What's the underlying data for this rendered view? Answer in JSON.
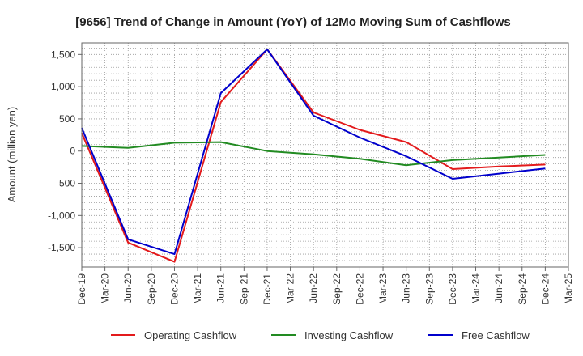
{
  "chart_data": {
    "type": "line",
    "title": "[9656]  Trend of Change in Amount (YoY) of 12Mo Moving Sum of Cashflows",
    "xlabel": "",
    "ylabel": "Amount (million yen)",
    "ylim": [
      -1800,
      1680
    ],
    "yticks": [
      1500,
      1000,
      500,
      0,
      -500,
      -1000,
      -1500
    ],
    "ytick_labels": [
      "1,500",
      "1,000",
      "500",
      "0",
      "-500",
      "-1,000",
      "-1,500"
    ],
    "categories": [
      "Dec-19",
      "Mar-20",
      "Jun-20",
      "Sep-20",
      "Dec-20",
      "Mar-21",
      "Jun-21",
      "Sep-21",
      "Dec-21",
      "Mar-22",
      "Jun-22",
      "Sep-22",
      "Dec-22",
      "Mar-23",
      "Jun-23",
      "Sep-23",
      "Dec-23",
      "Mar-24",
      "Jun-24",
      "Sep-24",
      "Dec-24",
      "Mar-25"
    ],
    "grid": true,
    "legend_position": "bottom",
    "series": [
      {
        "name": "Operating Cashflow",
        "color": "#e31a1c",
        "points": [
          {
            "x": "Dec-19",
            "y": 280
          },
          {
            "x": "Jun-20",
            "y": -1420
          },
          {
            "x": "Dec-20",
            "y": -1720
          },
          {
            "x": "Jun-21",
            "y": 760
          },
          {
            "x": "Dec-21",
            "y": 1580
          },
          {
            "x": "Jun-22",
            "y": 600
          },
          {
            "x": "Dec-22",
            "y": 330
          },
          {
            "x": "Jun-23",
            "y": 140
          },
          {
            "x": "Dec-23",
            "y": -280
          },
          {
            "x": "Jun-24",
            "y": -240
          },
          {
            "x": "Dec-24",
            "y": -210
          }
        ]
      },
      {
        "name": "Investing Cashflow",
        "color": "#228b22",
        "points": [
          {
            "x": "Dec-19",
            "y": 80
          },
          {
            "x": "Jun-20",
            "y": 50
          },
          {
            "x": "Dec-20",
            "y": 130
          },
          {
            "x": "Jun-21",
            "y": 140
          },
          {
            "x": "Dec-21",
            "y": 0
          },
          {
            "x": "Jun-22",
            "y": -50
          },
          {
            "x": "Dec-22",
            "y": -120
          },
          {
            "x": "Jun-23",
            "y": -220
          },
          {
            "x": "Dec-23",
            "y": -140
          },
          {
            "x": "Jun-24",
            "y": -100
          },
          {
            "x": "Dec-24",
            "y": -60
          }
        ]
      },
      {
        "name": "Free Cashflow",
        "color": "#0000cc",
        "points": [
          {
            "x": "Dec-19",
            "y": 360
          },
          {
            "x": "Jun-20",
            "y": -1370
          },
          {
            "x": "Dec-20",
            "y": -1600
          },
          {
            "x": "Jun-21",
            "y": 900
          },
          {
            "x": "Dec-21",
            "y": 1580
          },
          {
            "x": "Jun-22",
            "y": 550
          },
          {
            "x": "Dec-22",
            "y": 210
          },
          {
            "x": "Jun-23",
            "y": -80
          },
          {
            "x": "Dec-23",
            "y": -430
          },
          {
            "x": "Jun-24",
            "y": -350
          },
          {
            "x": "Dec-24",
            "y": -270
          }
        ]
      }
    ]
  }
}
